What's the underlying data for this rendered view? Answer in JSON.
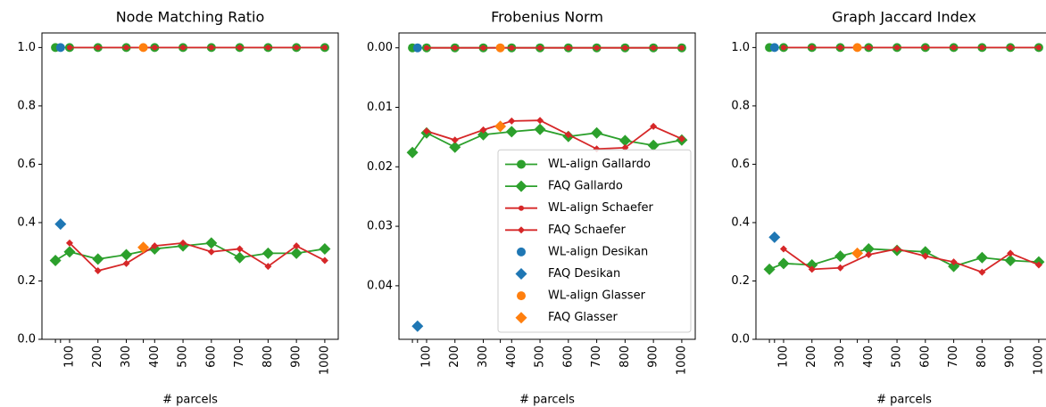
{
  "chart_data": [
    {
      "type": "line",
      "title": "Node Matching Ratio",
      "xlabel": "# parcels",
      "xlim": [
        2.5,
        1047.5
      ],
      "xticks": [
        {
          "value": 50,
          "label": null
        },
        {
          "value": 68,
          "label": null
        },
        100,
        200,
        300,
        {
          "value": 360,
          "label": null
        },
        400,
        500,
        600,
        700,
        800,
        900,
        1000
      ],
      "ylim": [
        0,
        1.05
      ],
      "yticks": [
        {
          "value": 0,
          "label": "0.0"
        },
        0.2,
        0.4,
        0.6,
        0.8,
        {
          "value": 1,
          "label": "1.0"
        }
      ],
      "series": [
        {
          "name": "WL-align Gallardo",
          "color": "#2ca02c",
          "marker": "circle",
          "marker_size": "large",
          "line": true,
          "x": [
            50,
            100,
            200,
            300,
            400,
            500,
            600,
            700,
            800,
            900,
            1000
          ],
          "values": [
            1,
            1,
            1,
            1,
            1,
            1,
            1,
            1,
            1,
            1,
            1
          ]
        },
        {
          "name": "FAQ Gallardo",
          "color": "#2ca02c",
          "marker": "diamond",
          "marker_size": "large",
          "line": true,
          "x": [
            50,
            100,
            200,
            300,
            400,
            500,
            600,
            700,
            800,
            900,
            1000
          ],
          "values": [
            0.27,
            0.3,
            0.275,
            0.29,
            0.31,
            0.32,
            0.33,
            0.28,
            0.295,
            0.295,
            0.31
          ]
        },
        {
          "name": "WL-align Schaefer",
          "color": "#d62728",
          "marker": "circle",
          "marker_size": "small",
          "line": true,
          "x": [
            100,
            200,
            300,
            400,
            500,
            600,
            700,
            800,
            900,
            1000
          ],
          "values": [
            1,
            1,
            1,
            1,
            1,
            1,
            1,
            1,
            1,
            1
          ]
        },
        {
          "name": "FAQ Schaefer",
          "color": "#d62728",
          "marker": "diamond",
          "marker_size": "small",
          "line": true,
          "x": [
            100,
            200,
            300,
            400,
            500,
            600,
            700,
            800,
            900,
            1000
          ],
          "values": [
            0.33,
            0.235,
            0.26,
            0.32,
            0.33,
            0.3,
            0.31,
            0.25,
            0.32,
            0.27
          ]
        },
        {
          "name": "WL-align Desikan",
          "color": "#1f77b4",
          "marker": "circle",
          "marker_size": "large",
          "line": false,
          "x": [
            68
          ],
          "values": [
            1
          ]
        },
        {
          "name": "FAQ Desikan",
          "color": "#1f77b4",
          "marker": "diamond",
          "marker_size": "large",
          "line": false,
          "x": [
            68
          ],
          "values": [
            0.395
          ]
        },
        {
          "name": "WL-align Glasser",
          "color": "#ff7f0e",
          "marker": "circle",
          "marker_size": "large",
          "line": false,
          "x": [
            360
          ],
          "values": [
            1
          ]
        },
        {
          "name": "FAQ Glasser",
          "color": "#ff7f0e",
          "marker": "diamond",
          "marker_size": "large",
          "line": false,
          "x": [
            360
          ],
          "values": [
            0.315
          ]
        }
      ]
    },
    {
      "type": "line",
      "title": "Frobenius Norm",
      "xlabel": "# parcels",
      "xlim": [
        2.5,
        1047.5
      ],
      "xticks": [
        {
          "value": 50,
          "label": null
        },
        {
          "value": 68,
          "label": null
        },
        100,
        200,
        300,
        {
          "value": 360,
          "label": null
        },
        400,
        500,
        600,
        700,
        800,
        900,
        1000
      ],
      "ylim": [
        0.049,
        -0.0025
      ],
      "yticks": [
        {
          "value": 0,
          "label": "0.00"
        },
        0.01,
        0.02,
        0.03,
        0.04
      ],
      "legend": "lower right",
      "series": [
        {
          "name": "WL-align Gallardo",
          "color": "#2ca02c",
          "marker": "circle",
          "marker_size": "large",
          "line": true,
          "x": [
            50,
            100,
            200,
            300,
            400,
            500,
            600,
            700,
            800,
            900,
            1000
          ],
          "values": [
            0,
            0,
            0,
            0,
            0,
            0,
            0,
            0,
            0,
            0,
            0
          ]
        },
        {
          "name": "FAQ Gallardo",
          "color": "#2ca02c",
          "marker": "diamond",
          "marker_size": "large",
          "line": true,
          "x": [
            50,
            100,
            200,
            300,
            400,
            500,
            600,
            700,
            800,
            900,
            1000
          ],
          "values": [
            0.0176,
            0.0143,
            0.0167,
            0.0146,
            0.0141,
            0.0137,
            0.0149,
            0.0143,
            0.0156,
            0.0164,
            0.0155
          ]
        },
        {
          "name": "WL-align Schaefer",
          "color": "#d62728",
          "marker": "circle",
          "marker_size": "small",
          "line": true,
          "x": [
            100,
            200,
            300,
            400,
            500,
            600,
            700,
            800,
            900,
            1000
          ],
          "values": [
            0,
            0,
            0,
            0,
            0,
            0,
            0,
            0,
            0,
            0
          ]
        },
        {
          "name": "FAQ Schaefer",
          "color": "#d62728",
          "marker": "diamond",
          "marker_size": "small",
          "line": true,
          "x": [
            100,
            200,
            300,
            400,
            500,
            600,
            700,
            800,
            900,
            1000
          ],
          "values": [
            0.014,
            0.0155,
            0.0138,
            0.0123,
            0.0122,
            0.0146,
            0.017,
            0.0168,
            0.0132,
            0.0153
          ]
        },
        {
          "name": "WL-align Desikan",
          "color": "#1f77b4",
          "marker": "circle",
          "marker_size": "large",
          "line": false,
          "x": [
            68
          ],
          "values": [
            0
          ]
        },
        {
          "name": "FAQ Desikan",
          "color": "#1f77b4",
          "marker": "diamond",
          "marker_size": "large",
          "line": false,
          "x": [
            68
          ],
          "values": [
            0.0468
          ]
        },
        {
          "name": "WL-align Glasser",
          "color": "#ff7f0e",
          "marker": "circle",
          "marker_size": "large",
          "line": false,
          "x": [
            360
          ],
          "values": [
            0
          ]
        },
        {
          "name": "FAQ Glasser",
          "color": "#ff7f0e",
          "marker": "diamond",
          "marker_size": "large",
          "line": false,
          "x": [
            360
          ],
          "values": [
            0.0132
          ]
        }
      ]
    },
    {
      "type": "line",
      "title": "Graph Jaccard Index",
      "xlabel": "# parcels",
      "xlim": [
        2.5,
        1047.5
      ],
      "xticks": [
        {
          "value": 50,
          "label": null
        },
        {
          "value": 68,
          "label": null
        },
        100,
        200,
        300,
        {
          "value": 360,
          "label": null
        },
        400,
        500,
        600,
        700,
        800,
        900,
        1000
      ],
      "ylim": [
        0,
        1.05
      ],
      "yticks": [
        {
          "value": 0,
          "label": "0.0"
        },
        0.2,
        0.4,
        0.6,
        0.8,
        {
          "value": 1,
          "label": "1.0"
        }
      ],
      "series": [
        {
          "name": "WL-align Gallardo",
          "color": "#2ca02c",
          "marker": "circle",
          "marker_size": "large",
          "line": true,
          "x": [
            50,
            100,
            200,
            300,
            400,
            500,
            600,
            700,
            800,
            900,
            1000
          ],
          "values": [
            1,
            1,
            1,
            1,
            1,
            1,
            1,
            1,
            1,
            1,
            1
          ]
        },
        {
          "name": "FAQ Gallardo",
          "color": "#2ca02c",
          "marker": "diamond",
          "marker_size": "large",
          "line": true,
          "x": [
            50,
            100,
            200,
            300,
            400,
            500,
            600,
            700,
            800,
            900,
            1000
          ],
          "values": [
            0.24,
            0.26,
            0.255,
            0.285,
            0.31,
            0.305,
            0.3,
            0.25,
            0.28,
            0.27,
            0.265
          ]
        },
        {
          "name": "WL-align Schaefer",
          "color": "#d62728",
          "marker": "circle",
          "marker_size": "small",
          "line": true,
          "x": [
            100,
            200,
            300,
            400,
            500,
            600,
            700,
            800,
            900,
            1000
          ],
          "values": [
            1,
            1,
            1,
            1,
            1,
            1,
            1,
            1,
            1,
            1
          ]
        },
        {
          "name": "FAQ Schaefer",
          "color": "#d62728",
          "marker": "diamond",
          "marker_size": "small",
          "line": true,
          "x": [
            100,
            200,
            300,
            400,
            500,
            600,
            700,
            800,
            900,
            1000
          ],
          "values": [
            0.31,
            0.24,
            0.245,
            0.29,
            0.31,
            0.285,
            0.265,
            0.23,
            0.295,
            0.255
          ]
        },
        {
          "name": "WL-align Desikan",
          "color": "#1f77b4",
          "marker": "circle",
          "marker_size": "large",
          "line": false,
          "x": [
            68
          ],
          "values": [
            1
          ]
        },
        {
          "name": "FAQ Desikan",
          "color": "#1f77b4",
          "marker": "diamond",
          "marker_size": "large",
          "line": false,
          "x": [
            68
          ],
          "values": [
            0.35
          ]
        },
        {
          "name": "WL-align Glasser",
          "color": "#ff7f0e",
          "marker": "circle",
          "marker_size": "large",
          "line": false,
          "x": [
            360
          ],
          "values": [
            1
          ]
        },
        {
          "name": "FAQ Glasser",
          "color": "#ff7f0e",
          "marker": "diamond",
          "marker_size": "large",
          "line": false,
          "x": [
            360
          ],
          "values": [
            0.295
          ]
        }
      ]
    }
  ]
}
